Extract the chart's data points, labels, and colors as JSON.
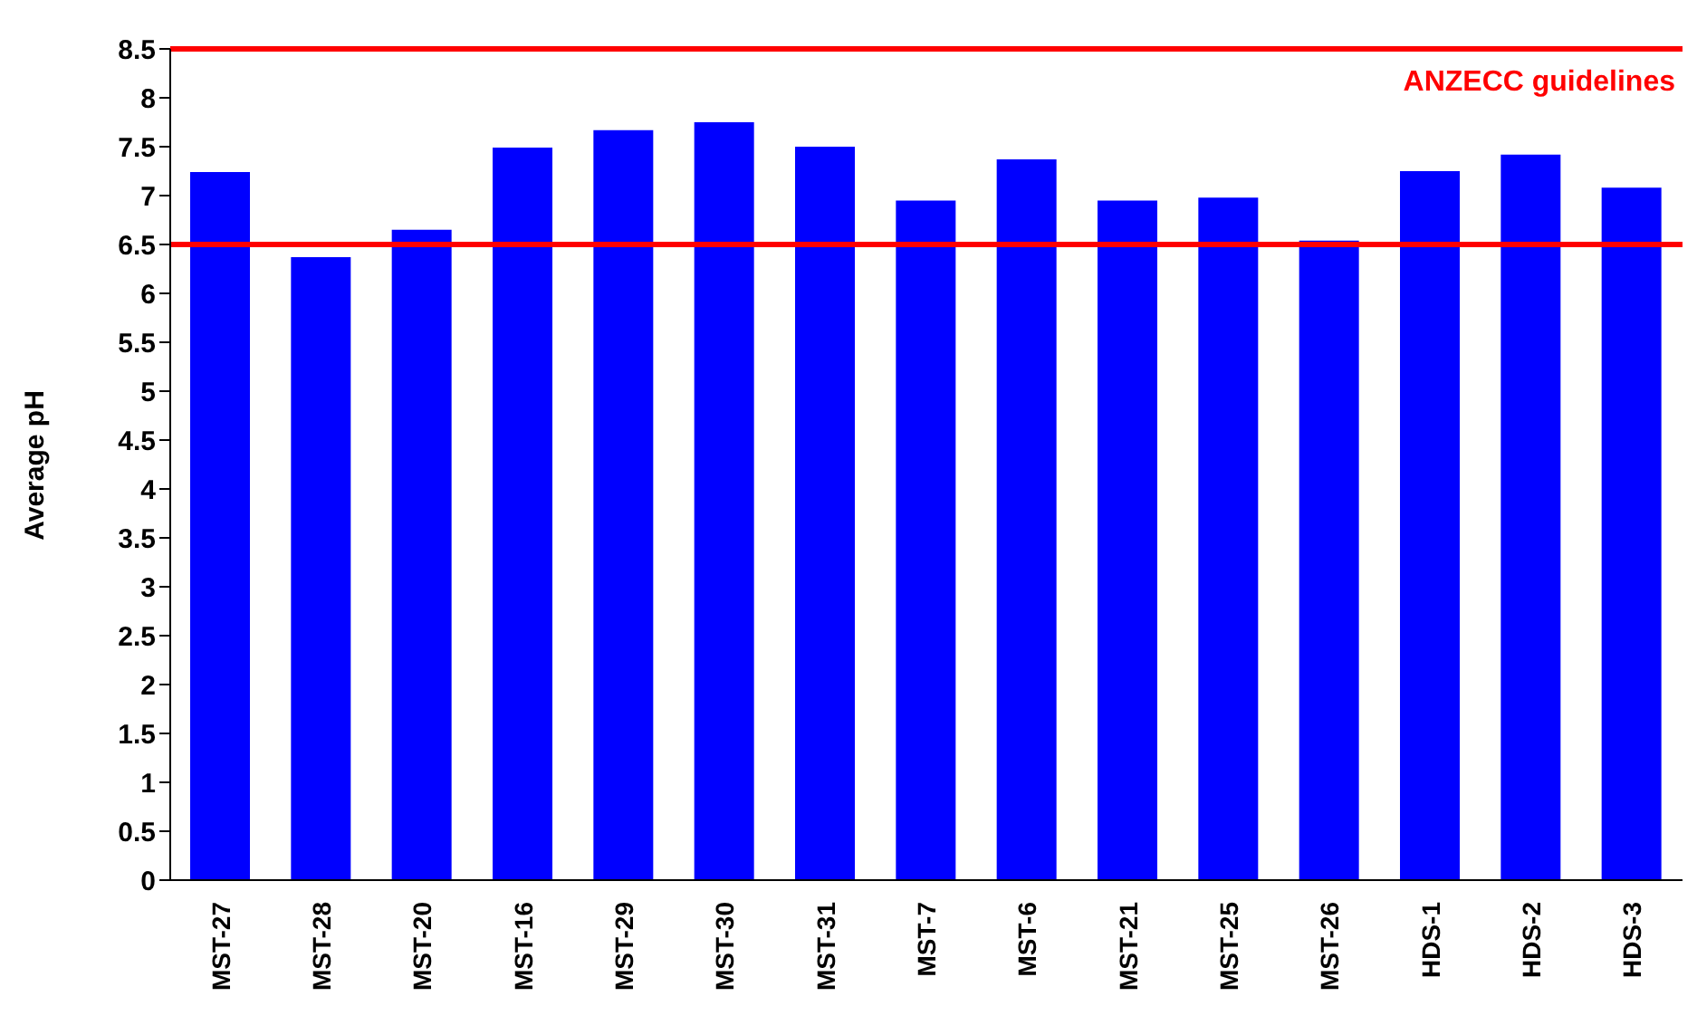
{
  "chart_data": {
    "type": "bar",
    "ylabel": "Average pH",
    "categories": [
      "MST-27",
      "MST-28",
      "MST-20",
      "MST-16",
      "MST-29",
      "MST-30",
      "MST-31",
      "MST-7",
      "MST-6",
      "MST-21",
      "MST-25",
      "MST-26",
      "HDS-1",
      "HDS-2",
      "HDS-3"
    ],
    "values": [
      7.24,
      6.37,
      6.65,
      7.49,
      7.67,
      7.75,
      7.5,
      6.95,
      7.37,
      6.95,
      6.98,
      6.54,
      7.25,
      7.42,
      7.08
    ],
    "color": "#0000ff",
    "ylim": [
      0,
      8.5
    ],
    "yticks": [
      0,
      0.5,
      1,
      1.5,
      2,
      2.5,
      3,
      3.5,
      4,
      4.5,
      5,
      5.5,
      6,
      6.5,
      7,
      7.5,
      8,
      8.5
    ],
    "ref_lines": [
      {
        "axis": "y",
        "value": 8.5,
        "color": "#ff0000"
      },
      {
        "axis": "y",
        "value": 6.5,
        "color": "#ff0000"
      }
    ],
    "annotations": [
      "ANZECC guidelines"
    ],
    "grid": false
  }
}
